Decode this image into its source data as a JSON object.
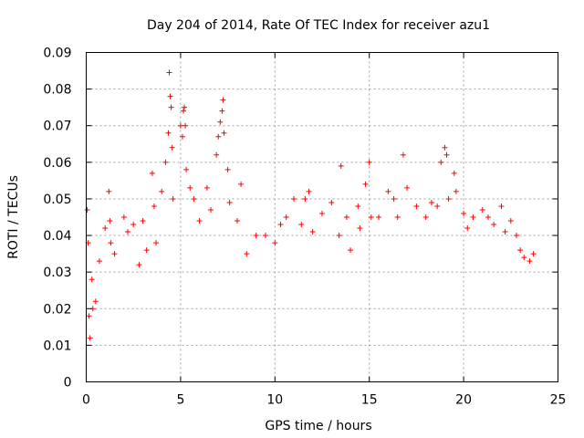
{
  "chart_data": {
    "type": "scatter",
    "title": "Day 204 of 2014, Rate Of TEC Index for receiver azu1",
    "xlabel": "GPS time / hours",
    "ylabel": "ROTI / TECUs",
    "xlim": [
      0,
      25
    ],
    "ylim": [
      0,
      0.09
    ],
    "x_ticks": [
      0,
      5,
      10,
      15,
      20,
      25
    ],
    "x_tick_labels": [
      "0",
      "5",
      "10",
      "15",
      "20",
      "25"
    ],
    "y_ticks": [
      0,
      0.01,
      0.02,
      0.03,
      0.04,
      0.05,
      0.06,
      0.07,
      0.08,
      0.09
    ],
    "y_tick_labels": [
      "0",
      "0.01",
      "0.02",
      "0.03",
      "0.04",
      "0.05",
      "0.06",
      "0.07",
      "0.08",
      "0.09"
    ],
    "grid": true,
    "marker": "plus",
    "color": "#ff0000",
    "series": [
      {
        "name": "ROTI",
        "x": [
          0.05,
          0.1,
          0.15,
          0.2,
          0.3,
          0.35,
          0.5,
          0.7,
          1.0,
          1.2,
          1.25,
          1.3,
          1.5,
          2.0,
          2.2,
          2.5,
          2.8,
          3.0,
          3.2,
          3.5,
          3.6,
          3.7,
          4.0,
          4.2,
          4.35,
          4.4,
          4.45,
          4.5,
          4.55,
          4.6,
          5.0,
          5.1,
          5.15,
          5.2,
          5.25,
          5.3,
          5.5,
          5.7,
          6.0,
          6.4,
          6.6,
          6.9,
          7.0,
          7.1,
          7.2,
          7.25,
          7.3,
          7.5,
          7.6,
          8.0,
          8.2,
          8.5,
          9.0,
          9.5,
          10.0,
          10.3,
          10.6,
          11.0,
          11.4,
          11.6,
          11.8,
          12.0,
          12.5,
          13.0,
          13.4,
          13.5,
          13.8,
          14.0,
          14.4,
          14.5,
          14.8,
          15.0,
          15.1,
          15.5,
          16.0,
          16.3,
          16.5,
          16.8,
          17.0,
          17.5,
          18.0,
          18.3,
          18.6,
          18.8,
          19.0,
          19.1,
          19.2,
          19.5,
          19.6,
          20.0,
          20.2,
          20.5,
          21.0,
          21.3,
          21.6,
          22.0,
          22.2,
          22.5,
          22.8,
          23.0,
          23.2,
          23.5,
          23.7
        ],
        "y": [
          0.047,
          0.038,
          0.018,
          0.012,
          0.028,
          0.02,
          0.022,
          0.033,
          0.042,
          0.052,
          0.044,
          0.038,
          0.035,
          0.045,
          0.041,
          0.043,
          0.032,
          0.044,
          0.036,
          0.057,
          0.048,
          0.038,
          0.052,
          0.06,
          0.068,
          0.0845,
          0.078,
          0.075,
          0.064,
          0.05,
          0.07,
          0.067,
          0.074,
          0.075,
          0.07,
          0.058,
          0.053,
          0.05,
          0.044,
          0.053,
          0.047,
          0.062,
          0.067,
          0.071,
          0.074,
          0.077,
          0.068,
          0.058,
          0.049,
          0.044,
          0.054,
          0.035,
          0.04,
          0.04,
          0.038,
          0.043,
          0.045,
          0.05,
          0.043,
          0.05,
          0.052,
          0.041,
          0.046,
          0.049,
          0.04,
          0.059,
          0.045,
          0.036,
          0.048,
          0.042,
          0.054,
          0.06,
          0.045,
          0.045,
          0.052,
          0.05,
          0.045,
          0.062,
          0.053,
          0.048,
          0.045,
          0.049,
          0.048,
          0.06,
          0.064,
          0.062,
          0.05,
          0.057,
          0.052,
          0.046,
          0.042,
          0.045,
          0.047,
          0.045,
          0.043,
          0.048,
          0.041,
          0.044,
          0.04,
          0.036,
          0.034,
          0.033,
          0.035
        ]
      }
    ]
  }
}
